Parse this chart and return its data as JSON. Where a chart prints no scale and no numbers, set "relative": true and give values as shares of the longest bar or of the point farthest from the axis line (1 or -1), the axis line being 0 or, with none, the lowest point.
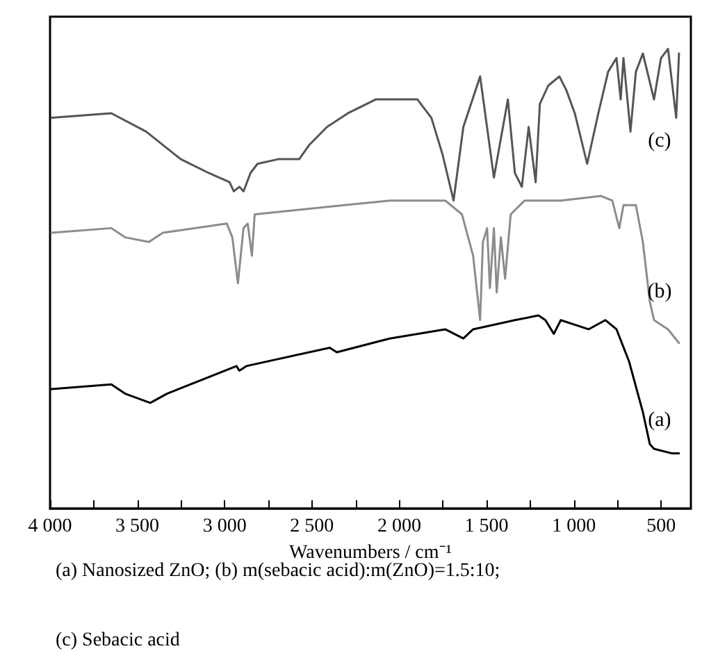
{
  "chart_data": {
    "type": "line",
    "relative": true,
    "xlabel": "Wavenumbers / cm⁻¹",
    "xlim": [
      4000,
      330
    ],
    "xticks": [
      {
        "value": 4000,
        "label": "4 000"
      },
      {
        "value": 3750,
        "label": null
      },
      {
        "value": 3500,
        "label": "3 500"
      },
      {
        "value": 3250,
        "label": null
      },
      {
        "value": 3000,
        "label": "3 000"
      },
      {
        "value": 2750,
        "label": null
      },
      {
        "value": 2500,
        "label": "2 500"
      },
      {
        "value": 2250,
        "label": null
      },
      {
        "value": 2000,
        "label": "2 000"
      },
      {
        "value": 1750,
        "label": null
      },
      {
        "value": 1500,
        "label": "1 500"
      },
      {
        "value": 1250,
        "label": null
      },
      {
        "value": 1000,
        "label": "1 000"
      },
      {
        "value": 750,
        "label": null
      },
      500
    ],
    "grid": false,
    "marker": "none",
    "line_style": "solid",
    "series": [
      {
        "name": "(c)",
        "color": "#555555",
        "x": [
          3992,
          3649,
          3450,
          3251,
          3091,
          2972,
          2948,
          2916,
          2892,
          2852,
          2812,
          2693,
          2573,
          2518,
          2414,
          2294,
          2135,
          1896,
          1816,
          1752,
          1689,
          1633,
          1537,
          1458,
          1378,
          1338,
          1298,
          1259,
          1219,
          1195,
          1147,
          1083,
          1043,
          995,
          924,
          860,
          804,
          756,
          732,
          716,
          676,
          645,
          605,
          541,
          501,
          461,
          414,
          398
        ],
        "values": [
          0.85,
          0.86,
          0.82,
          0.76,
          0.73,
          0.71,
          0.69,
          0.7,
          0.69,
          0.73,
          0.75,
          0.76,
          0.76,
          0.79,
          0.83,
          0.86,
          0.89,
          0.89,
          0.85,
          0.77,
          0.67,
          0.83,
          0.94,
          0.72,
          0.89,
          0.73,
          0.7,
          0.83,
          0.71,
          0.88,
          0.92,
          0.94,
          0.91,
          0.86,
          0.75,
          0.86,
          0.95,
          0.98,
          0.89,
          0.98,
          0.82,
          0.95,
          0.99,
          0.89,
          0.98,
          1.0,
          0.85,
          0.99
        ]
      },
      {
        "name": "(b)",
        "color": "#8c8c8c",
        "x": [
          3992,
          3649,
          3570,
          3434,
          3354,
          2988,
          2956,
          2924,
          2892,
          2868,
          2844,
          2828,
          2055,
          1737,
          1641,
          1577,
          1537,
          1521,
          1497,
          1481,
          1458,
          1442,
          1418,
          1394,
          1362,
          1282,
          1075,
          844,
          780,
          740,
          716,
          645,
          605,
          565,
          541,
          461,
          398
        ],
        "values": [
          0.6,
          0.61,
          0.59,
          0.58,
          0.6,
          0.62,
          0.59,
          0.49,
          0.61,
          0.62,
          0.55,
          0.64,
          0.67,
          0.67,
          0.64,
          0.55,
          0.41,
          0.58,
          0.61,
          0.48,
          0.61,
          0.47,
          0.59,
          0.5,
          0.64,
          0.67,
          0.67,
          0.68,
          0.67,
          0.61,
          0.66,
          0.66,
          0.58,
          0.45,
          0.41,
          0.39,
          0.36
        ]
      },
      {
        "name": "(a)",
        "color": "#000000",
        "x": [
          3992,
          3649,
          3570,
          3426,
          3330,
          2932,
          2916,
          2876,
          2398,
          2358,
          2055,
          1737,
          1633,
          1577,
          1338,
          1203,
          1163,
          1115,
          1075,
          995,
          916,
          820,
          756,
          684,
          605,
          565,
          541,
          437,
          398
        ],
        "values": [
          0.26,
          0.27,
          0.25,
          0.23,
          0.25,
          0.31,
          0.3,
          0.31,
          0.35,
          0.34,
          0.37,
          0.39,
          0.37,
          0.39,
          0.41,
          0.42,
          0.41,
          0.38,
          0.41,
          0.4,
          0.39,
          0.41,
          0.39,
          0.32,
          0.21,
          0.14,
          0.13,
          0.12,
          0.12
        ]
      }
    ],
    "annotations": [
      "(a) Nanosized ZnO; (b) m(sebacic acid):m(ZnO)=1.5:10;",
      "(c) Sebacic acid"
    ]
  }
}
